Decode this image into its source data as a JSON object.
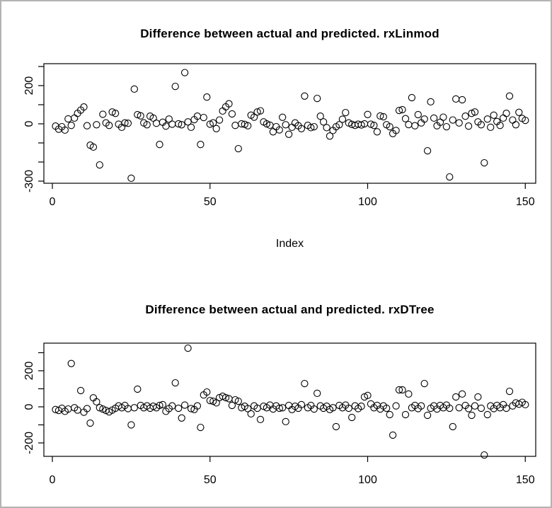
{
  "window": {
    "background": "#ffffff",
    "frame_color": "#b3b3b3",
    "plot_stroke_color": "#000000"
  },
  "chart_data": [
    {
      "type": "scatter",
      "title": "Difference between actual and predicted. rxLinmod",
      "xlabel": "Index",
      "ylabel": "",
      "point_symbol": "open-circle",
      "x_start_index": 1,
      "xlim": [
        0,
        155
      ],
      "ylim": [
        -310,
        300
      ],
      "grid": false,
      "xticks": [
        0,
        50,
        100,
        150
      ],
      "yticks": [
        {
          "value": 300,
          "label": ""
        },
        {
          "value": 200,
          "label": "200"
        },
        {
          "value": 100,
          "label": ""
        },
        {
          "value": 0,
          "label": "0"
        },
        {
          "value": -100,
          "label": ""
        },
        {
          "value": -200,
          "label": ""
        },
        {
          "value": -300,
          "label": "-300"
        }
      ],
      "values": [
        -12,
        -28,
        -15,
        -33,
        26,
        -8,
        30,
        55,
        72,
        88,
        -10,
        -112,
        -122,
        -5,
        -215,
        50,
        5,
        -8,
        62,
        55,
        -2,
        -18,
        5,
        3,
        -285,
        182,
        48,
        42,
        5,
        -5,
        40,
        30,
        3,
        -108,
        8,
        -12,
        25,
        -2,
        196,
        0,
        -5,
        268,
        10,
        -18,
        22,
        40,
        -108,
        33,
        140,
        -2,
        5,
        -25,
        20,
        67,
        89,
        105,
        52,
        -8,
        -130,
        0,
        -3,
        -10,
        45,
        35,
        62,
        68,
        10,
        0,
        -7,
        -42,
        -15,
        -32,
        34,
        -5,
        -55,
        -18,
        5,
        -10,
        -25,
        145,
        -8,
        -20,
        -15,
        133,
        40,
        10,
        -20,
        -64,
        -35,
        -15,
        -5,
        24,
        59,
        5,
        -3,
        -8,
        -2,
        -6,
        0,
        49,
        -2,
        -8,
        -42,
        41,
        37,
        -5,
        -15,
        -51,
        -35,
        70,
        74,
        27,
        -4,
        137,
        -10,
        48,
        5,
        25,
        -141,
        115,
        30,
        -10,
        8,
        35,
        -15,
        -278,
        20,
        130,
        5,
        126,
        40,
        -12,
        55,
        62,
        10,
        -5,
        -204,
        25,
        -18,
        45,
        12,
        -8,
        30,
        55,
        145,
        20,
        -5,
        60,
        28,
        18
      ]
    },
    {
      "type": "scatter",
      "title": "Difference between actual and predicted. rxDTree",
      "xlabel": "",
      "ylabel": "",
      "point_symbol": "open-circle",
      "x_start_index": 1,
      "xlim": [
        0,
        155
      ],
      "ylim": [
        -290,
        350
      ],
      "grid": false,
      "xticks": [
        0,
        50,
        100,
        150
      ],
      "yticks": [
        {
          "value": 300,
          "label": ""
        },
        {
          "value": 200,
          "label": "200"
        },
        {
          "value": 100,
          "label": ""
        },
        {
          "value": 0,
          "label": "0"
        },
        {
          "value": -100,
          "label": ""
        },
        {
          "value": -200,
          "label": "-200"
        }
      ],
      "values": [
        -15,
        -20,
        -8,
        -25,
        -12,
        240,
        -5,
        -18,
        90,
        -30,
        -10,
        -90,
        50,
        28,
        -5,
        -12,
        -20,
        -28,
        -18,
        -8,
        5,
        -5,
        8,
        -10,
        -100,
        -5,
        98,
        8,
        -5,
        5,
        -8,
        3,
        -5,
        8,
        12,
        -25,
        -10,
        5,
        133,
        -8,
        -62,
        10,
        325,
        -10,
        -15,
        5,
        -114,
        66,
        82,
        35,
        31,
        22,
        51,
        59,
        51,
        45,
        8,
        39,
        31,
        -5,
        3,
        -10,
        -39,
        5,
        -8,
        -70,
        3,
        -5,
        10,
        -12,
        5,
        -8,
        -5,
        -82,
        8,
        -15,
        3,
        -8,
        12,
        129,
        -5,
        8,
        -12,
        75,
        5,
        -8,
        3,
        -15,
        -5,
        -110,
        8,
        -5,
        10,
        -8,
        -59,
        5,
        -10,
        3,
        55,
        63,
        16,
        -5,
        8,
        -12,
        5,
        -8,
        -43,
        -157,
        5,
        94,
        94,
        -43,
        71,
        -5,
        8,
        -10,
        5,
        129,
        -47,
        -8,
        5,
        -12,
        8,
        -5,
        10,
        -8,
        -110,
        55,
        -5,
        71,
        8,
        -10,
        -47,
        5,
        55,
        -8,
        -267,
        -43,
        5,
        -10,
        8,
        -5,
        12,
        -8,
        86,
        5,
        22,
        15,
        25,
        12
      ]
    }
  ]
}
